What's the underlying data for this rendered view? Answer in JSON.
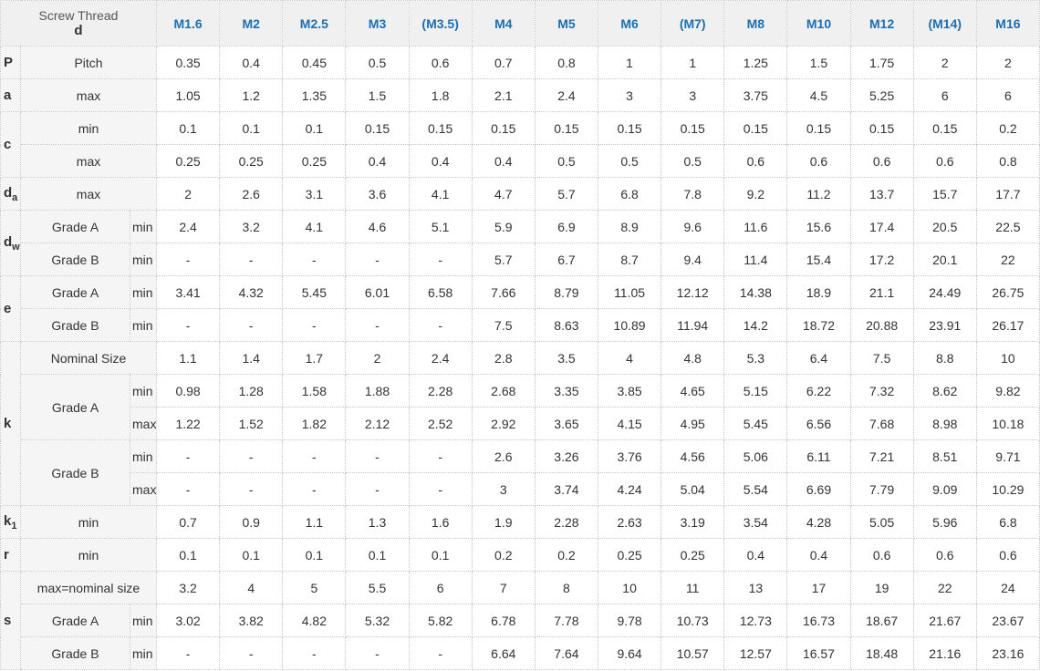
{
  "header": {
    "title": "Screw Thread",
    "symbol": "d",
    "sizes": [
      "M1.6",
      "M2",
      "M2.5",
      "M3",
      "(M3.5)",
      "M4",
      "M5",
      "M6",
      "(M7)",
      "M8",
      "M10",
      "M12",
      "(M14)",
      "M16"
    ]
  },
  "groups": [
    {
      "symbol": "P",
      "rows": [
        {
          "label": "Pitch",
          "values": [
            0.35,
            0.4,
            0.45,
            0.5,
            0.6,
            0.7,
            0.8,
            1,
            1,
            1.25,
            1.5,
            1.75,
            2,
            2
          ]
        }
      ]
    },
    {
      "symbol": "a",
      "rows": [
        {
          "label": "max",
          "values": [
            1.05,
            1.2,
            1.35,
            1.5,
            1.8,
            2.1,
            2.4,
            3,
            3,
            3.75,
            4.5,
            5.25,
            6,
            6
          ]
        }
      ]
    },
    {
      "symbol": "c",
      "rows": [
        {
          "label": "min",
          "values": [
            0.1,
            0.1,
            0.1,
            0.15,
            0.15,
            0.15,
            0.15,
            0.15,
            0.15,
            0.15,
            0.15,
            0.15,
            0.15,
            0.2
          ]
        },
        {
          "label": "max",
          "values": [
            0.25,
            0.25,
            0.25,
            0.4,
            0.4,
            0.4,
            0.5,
            0.5,
            0.5,
            0.6,
            0.6,
            0.6,
            0.6,
            0.8
          ]
        }
      ]
    },
    {
      "symbol": "d",
      "subscript": "a",
      "rows": [
        {
          "label": "max",
          "values": [
            2,
            2.6,
            3.1,
            3.6,
            4.1,
            4.7,
            5.7,
            6.8,
            7.8,
            9.2,
            11.2,
            13.7,
            15.7,
            17.7
          ]
        }
      ]
    },
    {
      "symbol": "d",
      "subscript": "w",
      "rows": [
        {
          "label": "Grade A",
          "qualifier": "min",
          "values": [
            2.4,
            3.2,
            4.1,
            4.6,
            5.1,
            5.9,
            6.9,
            8.9,
            9.6,
            11.6,
            15.6,
            17.4,
            20.5,
            22.5
          ]
        },
        {
          "label": "Grade B",
          "qualifier": "min",
          "values": [
            "-",
            "-",
            "-",
            "-",
            "-",
            5.7,
            6.7,
            8.7,
            9.4,
            11.4,
            15.4,
            17.2,
            20.1,
            22
          ]
        }
      ]
    },
    {
      "symbol": "e",
      "rows": [
        {
          "label": "Grade A",
          "qualifier": "min",
          "values": [
            3.41,
            4.32,
            5.45,
            6.01,
            6.58,
            7.66,
            8.79,
            11.05,
            12.12,
            14.38,
            18.9,
            21.1,
            24.49,
            26.75
          ]
        },
        {
          "label": "Grade B",
          "qualifier": "min",
          "values": [
            "-",
            "-",
            "-",
            "-",
            "-",
            7.5,
            8.63,
            10.89,
            11.94,
            14.2,
            18.72,
            20.88,
            23.91,
            26.17
          ]
        }
      ]
    },
    {
      "symbol": "k",
      "rows": [
        {
          "label": "Nominal Size",
          "values": [
            1.1,
            1.4,
            1.7,
            2,
            2.4,
            2.8,
            3.5,
            4,
            4.8,
            5.3,
            6.4,
            7.5,
            8.8,
            10
          ]
        },
        {
          "label": "Grade A",
          "rows": [
            {
              "qualifier": "min",
              "values": [
                0.98,
                1.28,
                1.58,
                1.88,
                2.28,
                2.68,
                3.35,
                3.85,
                4.65,
                5.15,
                6.22,
                7.32,
                8.62,
                9.82
              ]
            },
            {
              "qualifier": "max",
              "values": [
                1.22,
                1.52,
                1.82,
                2.12,
                2.52,
                2.92,
                3.65,
                4.15,
                4.95,
                5.45,
                6.56,
                7.68,
                8.98,
                10.18
              ]
            }
          ]
        },
        {
          "label": "Grade B",
          "rows": [
            {
              "qualifier": "min",
              "values": [
                "-",
                "-",
                "-",
                "-",
                "-",
                2.6,
                3.26,
                3.76,
                4.56,
                5.06,
                6.11,
                7.21,
                8.51,
                9.71
              ]
            },
            {
              "qualifier": "max",
              "values": [
                "-",
                "-",
                "-",
                "-",
                "-",
                3,
                3.74,
                4.24,
                5.04,
                5.54,
                6.69,
                7.79,
                9.09,
                10.29
              ]
            }
          ]
        }
      ]
    },
    {
      "symbol": "k",
      "subscript": "1",
      "rows": [
        {
          "label": "min",
          "values": [
            0.7,
            0.9,
            1.1,
            1.3,
            1.6,
            1.9,
            2.28,
            2.63,
            3.19,
            3.54,
            4.28,
            5.05,
            5.96,
            6.8
          ]
        }
      ]
    },
    {
      "symbol": "r",
      "rows": [
        {
          "label": "min",
          "values": [
            0.1,
            0.1,
            0.1,
            0.1,
            0.1,
            0.2,
            0.2,
            0.25,
            0.25,
            0.4,
            0.4,
            0.6,
            0.6,
            0.6
          ]
        }
      ]
    },
    {
      "symbol": "s",
      "rows": [
        {
          "label": "max=nominal size",
          "values": [
            3.2,
            4,
            5,
            5.5,
            6,
            7,
            8,
            10,
            11,
            13,
            17,
            19,
            22,
            24
          ]
        },
        {
          "label": "Grade A",
          "qualifier": "min",
          "values": [
            3.02,
            3.82,
            4.82,
            5.32,
            5.82,
            6.78,
            7.78,
            9.78,
            10.73,
            12.73,
            16.73,
            18.67,
            21.67,
            23.67
          ]
        },
        {
          "label": "Grade B",
          "qualifier": "min",
          "values": [
            "-",
            "-",
            "-",
            "-",
            "-",
            6.64,
            7.64,
            9.64,
            10.57,
            12.57,
            16.57,
            18.48,
            21.16,
            23.16
          ]
        }
      ]
    }
  ]
}
